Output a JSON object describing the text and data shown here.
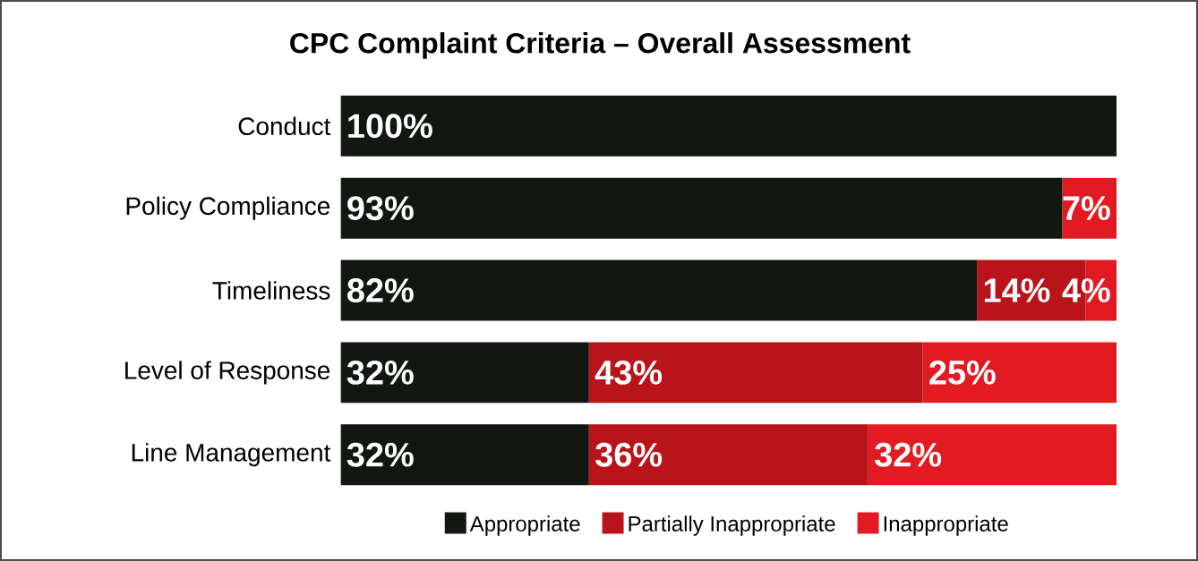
{
  "chart_data": {
    "type": "bar",
    "orientation": "horizontal",
    "stacked": true,
    "title": "CPC Complaint Criteria – Overall Assessment",
    "categories": [
      "Conduct",
      "Policy Compliance",
      "Timeliness",
      "Level of Response",
      "Line Management"
    ],
    "tick_labels": "y",
    "legend": "bottom",
    "series": [
      {
        "name": "Appropriate",
        "color": "#121712",
        "values": [
          100,
          93,
          82,
          32,
          32
        ],
        "value_labels": [
          "100%",
          "93%",
          "82%",
          "32%",
          "32%"
        ]
      },
      {
        "name": "Partially Inappropriate",
        "color": "#b8141a",
        "values": [
          0,
          0,
          14,
          43,
          36
        ],
        "value_labels": [
          null,
          null,
          "14%",
          "43%",
          "36%"
        ]
      },
      {
        "name": "Inappropriate",
        "color": "#e21b23",
        "values": [
          0,
          7,
          4,
          25,
          32
        ],
        "value_labels": [
          null,
          "7%",
          "4%",
          "25%",
          "32%"
        ]
      }
    ]
  }
}
